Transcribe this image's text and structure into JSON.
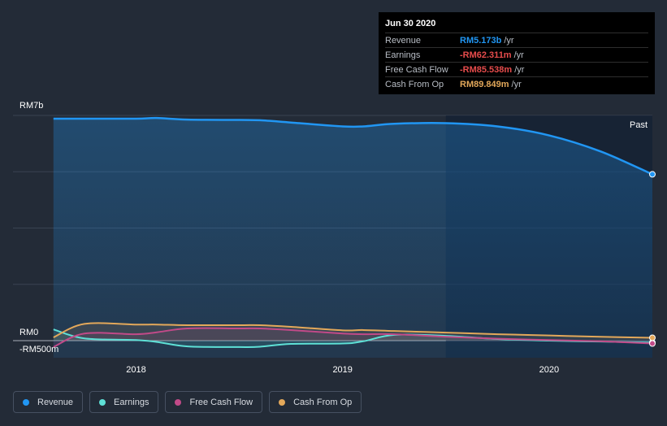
{
  "chart_data": {
    "type": "line",
    "title": "",
    "x": [
      2017.6,
      2017.75,
      2018.0,
      2018.1,
      2018.25,
      2018.5,
      2018.6,
      2018.75,
      2019.0,
      2019.1,
      2019.25,
      2019.5,
      2019.75,
      2020.0,
      2020.25,
      2020.5
    ],
    "series": [
      {
        "name": "Revenue",
        "color": "#2196f3",
        "values": [
          6.9,
          6.9,
          6.9,
          6.92,
          6.87,
          6.86,
          6.85,
          6.78,
          6.66,
          6.66,
          6.74,
          6.76,
          6.66,
          6.38,
          5.88,
          5.17
        ]
      },
      {
        "name": "Earnings",
        "color": "#5ee0d6",
        "values": [
          0.35,
          0.07,
          0.02,
          -0.04,
          -0.18,
          -0.2,
          -0.19,
          -0.1,
          -0.09,
          -0.02,
          0.18,
          0.15,
          0.05,
          0.0,
          -0.03,
          -0.06
        ]
      },
      {
        "name": "Free Cash Flow",
        "color": "#c14a88",
        "values": [
          -0.2,
          0.22,
          0.2,
          0.26,
          0.38,
          0.38,
          0.38,
          0.33,
          0.22,
          0.2,
          0.2,
          0.12,
          0.06,
          0.02,
          -0.02,
          -0.09
        ]
      },
      {
        "name": "Cash From Op",
        "color": "#e3a85a",
        "values": [
          0.1,
          0.52,
          0.5,
          0.5,
          0.48,
          0.48,
          0.48,
          0.43,
          0.32,
          0.33,
          0.3,
          0.25,
          0.2,
          0.16,
          0.12,
          0.09
        ]
      }
    ],
    "y_tick_labels": [
      "RM7b",
      "RM0",
      "-RM500m"
    ],
    "y_ticks": [
      7,
      0,
      -0.5
    ],
    "x_tick_labels": [
      "2018",
      "2019",
      "2020"
    ],
    "x_ticks": [
      2018,
      2019,
      2020
    ],
    "xlim": [
      2017.53,
      2020.5
    ],
    "ylim": [
      -0.5,
      7.0
    ],
    "past_label": "Past",
    "past_start": 2019.5
  },
  "tooltip": {
    "date": "Jun 30 2020",
    "rows": [
      {
        "label": "Revenue",
        "value": "RM5.173b",
        "unit": "/yr",
        "color": "#2196f3"
      },
      {
        "label": "Earnings",
        "value": "-RM62.311m",
        "unit": "/yr",
        "color": "#e74c4c"
      },
      {
        "label": "Free Cash Flow",
        "value": "-RM85.538m",
        "unit": "/yr",
        "color": "#e74c4c"
      },
      {
        "label": "Cash From Op",
        "value": "RM89.849m",
        "unit": "/yr",
        "color": "#e3a85a"
      }
    ]
  },
  "legend": [
    {
      "label": "Revenue",
      "color": "#2196f3"
    },
    {
      "label": "Earnings",
      "color": "#5ee0d6"
    },
    {
      "label": "Free Cash Flow",
      "color": "#c14a88"
    },
    {
      "label": "Cash From Op",
      "color": "#e3a85a"
    }
  ]
}
